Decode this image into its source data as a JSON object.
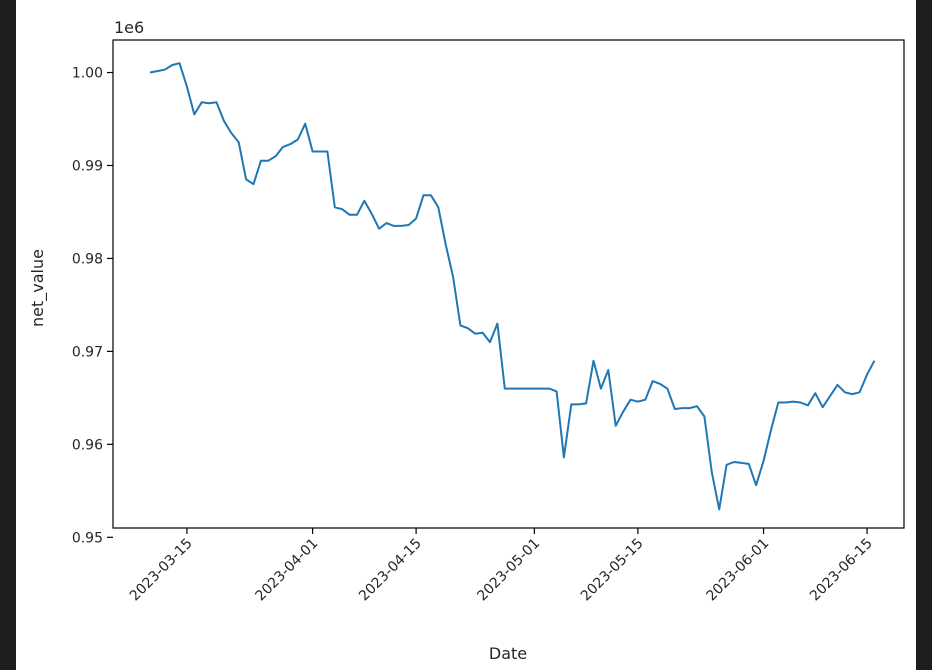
{
  "chart_data": {
    "type": "line",
    "title": "",
    "xlabel": "Date",
    "ylabel": "net_value",
    "y_offset_text": "1e6",
    "y_scale_factor": 1000000,
    "x_ticks": [
      "2023-03-15",
      "2023-04-01",
      "2023-04-15",
      "2023-05-01",
      "2023-05-15",
      "2023-06-01",
      "2023-06-15"
    ],
    "y_ticks": [
      "0.95",
      "0.96",
      "0.97",
      "0.98",
      "0.99",
      "1.00"
    ],
    "xlim": [
      "2023-03-05",
      "2023-06-20"
    ],
    "ylim": [
      951000,
      1003500
    ],
    "grid": false,
    "line_color": "#1f77b4",
    "series": [
      {
        "x": [
          "2023-03-10",
          "2023-03-12",
          "2023-03-13",
          "2023-03-14",
          "2023-03-15",
          "2023-03-16",
          "2023-03-17",
          "2023-03-18",
          "2023-03-19",
          "2023-03-20",
          "2023-03-21",
          "2023-03-22",
          "2023-03-23",
          "2023-03-24",
          "2023-03-25",
          "2023-03-26",
          "2023-03-27",
          "2023-03-28",
          "2023-03-29",
          "2023-03-30",
          "2023-03-31",
          "2023-04-01",
          "2023-04-02",
          "2023-04-03",
          "2023-04-04",
          "2023-04-05",
          "2023-04-06",
          "2023-04-07",
          "2023-04-08",
          "2023-04-09",
          "2023-04-10",
          "2023-04-11",
          "2023-04-12",
          "2023-04-13",
          "2023-04-14",
          "2023-04-15",
          "2023-04-16",
          "2023-04-17",
          "2023-04-18",
          "2023-04-19",
          "2023-04-20",
          "2023-04-21",
          "2023-04-22",
          "2023-04-23",
          "2023-04-24",
          "2023-04-25",
          "2023-04-26",
          "2023-04-27",
          "2023-04-28",
          "2023-04-29",
          "2023-04-30",
          "2023-05-01",
          "2023-05-02",
          "2023-05-03",
          "2023-05-04",
          "2023-05-05",
          "2023-05-06",
          "2023-05-07",
          "2023-05-08",
          "2023-05-09",
          "2023-05-10",
          "2023-05-11",
          "2023-05-12",
          "2023-05-13",
          "2023-05-14",
          "2023-05-15",
          "2023-05-16",
          "2023-05-17",
          "2023-05-18",
          "2023-05-19",
          "2023-05-20",
          "2023-05-21",
          "2023-05-22",
          "2023-05-23",
          "2023-05-24",
          "2023-05-25",
          "2023-05-26",
          "2023-05-27",
          "2023-05-28",
          "2023-05-29",
          "2023-05-30",
          "2023-05-31",
          "2023-06-01",
          "2023-06-02",
          "2023-06-03",
          "2023-06-04",
          "2023-06-05",
          "2023-06-06",
          "2023-06-07",
          "2023-06-08",
          "2023-06-09",
          "2023-06-10",
          "2023-06-11",
          "2023-06-12",
          "2023-06-13",
          "2023-06-14",
          "2023-06-15",
          "2023-06-16"
        ],
        "y": [
          1000000,
          1000300,
          1000800,
          1001000,
          998500,
          995500,
          996800,
          996700,
          996800,
          994800,
          993500,
          992500,
          988500,
          988000,
          990500,
          990500,
          991000,
          992000,
          992300,
          992800,
          994500,
          991500,
          991500,
          991500,
          985500,
          985300,
          984700,
          984700,
          986200,
          984800,
          983200,
          983800,
          983500,
          983500,
          983600,
          984300,
          986800,
          986800,
          985500,
          981500,
          978000,
          972800,
          972500,
          971900,
          972000,
          971000,
          973000,
          966000,
          966000,
          966000,
          966000,
          966000,
          966000,
          966000,
          965700,
          958600,
          964300,
          964300,
          964400,
          969000,
          966000,
          968000,
          962000,
          963500,
          964800,
          964600,
          964800,
          966800,
          966500,
          966000,
          963800,
          963900,
          963900,
          964100,
          963000,
          957000,
          953000,
          957800,
          958100,
          958000,
          957900,
          955600,
          958200,
          961500,
          964500,
          964500,
          964600,
          964500,
          964200,
          965500,
          964000,
          965200,
          966400,
          965600,
          965400,
          965600,
          967500,
          969000
        ]
      }
    ]
  }
}
